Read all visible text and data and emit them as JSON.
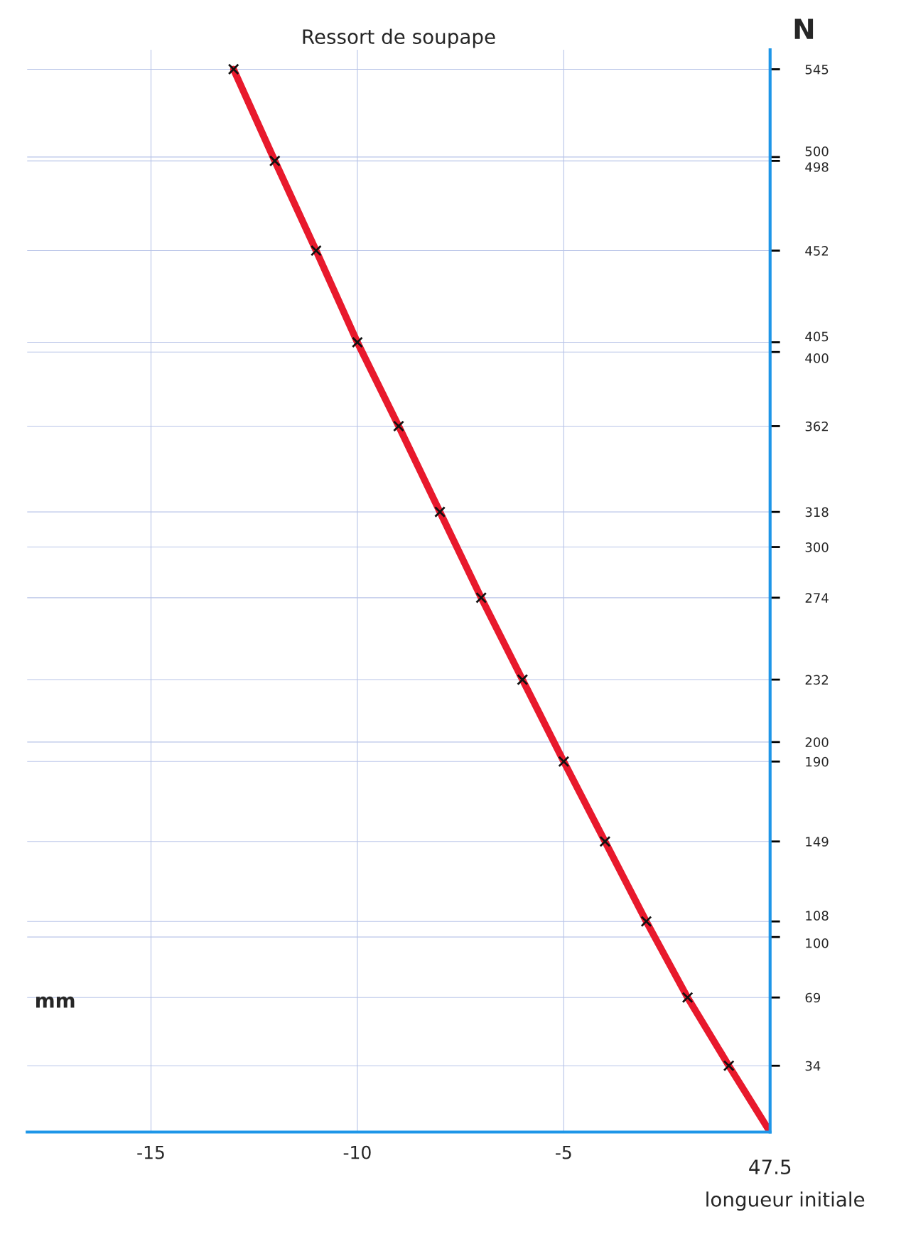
{
  "chart_data": {
    "type": "line",
    "title": "Ressort de soupape",
    "xlabel": "mm",
    "ylabel": "N",
    "x": [
      0,
      -1,
      -2,
      -3,
      -4,
      -5,
      -6,
      -7,
      -8,
      -9,
      -10,
      -11,
      -12,
      -13
    ],
    "series": [
      {
        "color": "#e8192c",
        "values": [
          0,
          34,
          69,
          108,
          149,
          190,
          232,
          274,
          318,
          362,
          405,
          452,
          498,
          545
        ]
      },
      {
        "type": "scatter",
        "color": "#111111",
        "marker": "cross",
        "x": [
          -1,
          -2,
          -3,
          -4,
          -5,
          -6,
          -7,
          -8,
          -9,
          -10,
          -11,
          -12,
          -13
        ],
        "values": [
          34,
          69,
          108,
          149,
          190,
          232,
          274,
          318,
          362,
          405,
          452,
          498,
          545
        ]
      }
    ],
    "xlim": [
      -18,
      0
    ],
    "ylim": [
      0,
      555
    ],
    "xticks": [
      -15,
      -10,
      -5
    ],
    "yticks": [
      34,
      69,
      100,
      108,
      149,
      190,
      200,
      232,
      274,
      300,
      318,
      362,
      400,
      405,
      452,
      498,
      500,
      545
    ],
    "grid": true,
    "annotations": [
      "47.5",
      "longueur initiale"
    ]
  }
}
